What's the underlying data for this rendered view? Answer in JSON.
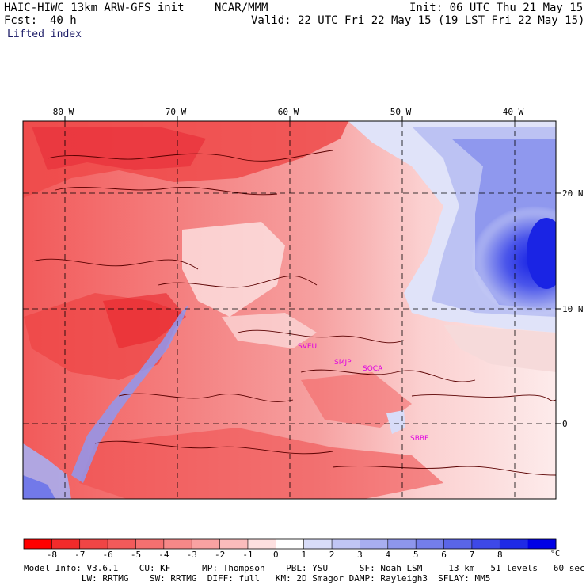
{
  "header": {
    "model": "HAIC-HIWC 13km ARW-GFS init",
    "org": "NCAR/MMM",
    "init": "Init: 06 UTC Thu 21 May 15",
    "fcst_label": "Fcst:",
    "fcst_value": "40 h",
    "valid": "Valid: 22 UTC Fri 22 May 15 (19 LST Fri 22 May 15)",
    "field": "Lifted index"
  },
  "map": {
    "lon_labels": [
      "80 W",
      "70 W",
      "60 W",
      "50 W",
      "40 W"
    ],
    "lat_labels": [
      "20 N",
      "10 N",
      "0"
    ],
    "stations": [
      "SVEU",
      "SMJP",
      "SOCA",
      "SBBE"
    ],
    "colors": {
      "strong_neg": "#e8252c",
      "neg": "#f06a6a",
      "mid_neg": "#f59898",
      "light_neg": "#fbcaca",
      "neutral": "#fdf0f0",
      "pos_light": "#c8cdf5",
      "pos": "#8f98ee",
      "strong_pos": "#2a32e0",
      "contour": "#5a0000",
      "station_text": "#e000e0"
    }
  },
  "legend": {
    "ticks": [
      "-8",
      "-7",
      "-6",
      "-5",
      "-4",
      "-3",
      "-2",
      "-1",
      "0",
      "1",
      "2",
      "3",
      "4",
      "5",
      "6",
      "7",
      "8"
    ],
    "unit": "°C",
    "colors": [
      "#ff0000",
      "#f22b2b",
      "#f04545",
      "#f25a5a",
      "#f47070",
      "#f68888",
      "#f8a2a2",
      "#fbbcbc",
      "#fde0e0",
      "#ffffff",
      "#d8dcf8",
      "#c0c5f4",
      "#a8aef0",
      "#8e96ec",
      "#747eea",
      "#5a65e8",
      "#3e49e8",
      "#1f2ae6",
      "#0000e6"
    ]
  },
  "footer": {
    "line1": "Model Info: V3.6.1    CU: KF      MP: Thompson    PBL: YSU      SF: Noah LSM     13 km   51 levels   60 sec",
    "line2": "           LW: RRTMG    SW: RRTMG  DIFF: full   KM: 2D Smagor DAMP: Rayleigh3  SFLAY: MM5"
  }
}
